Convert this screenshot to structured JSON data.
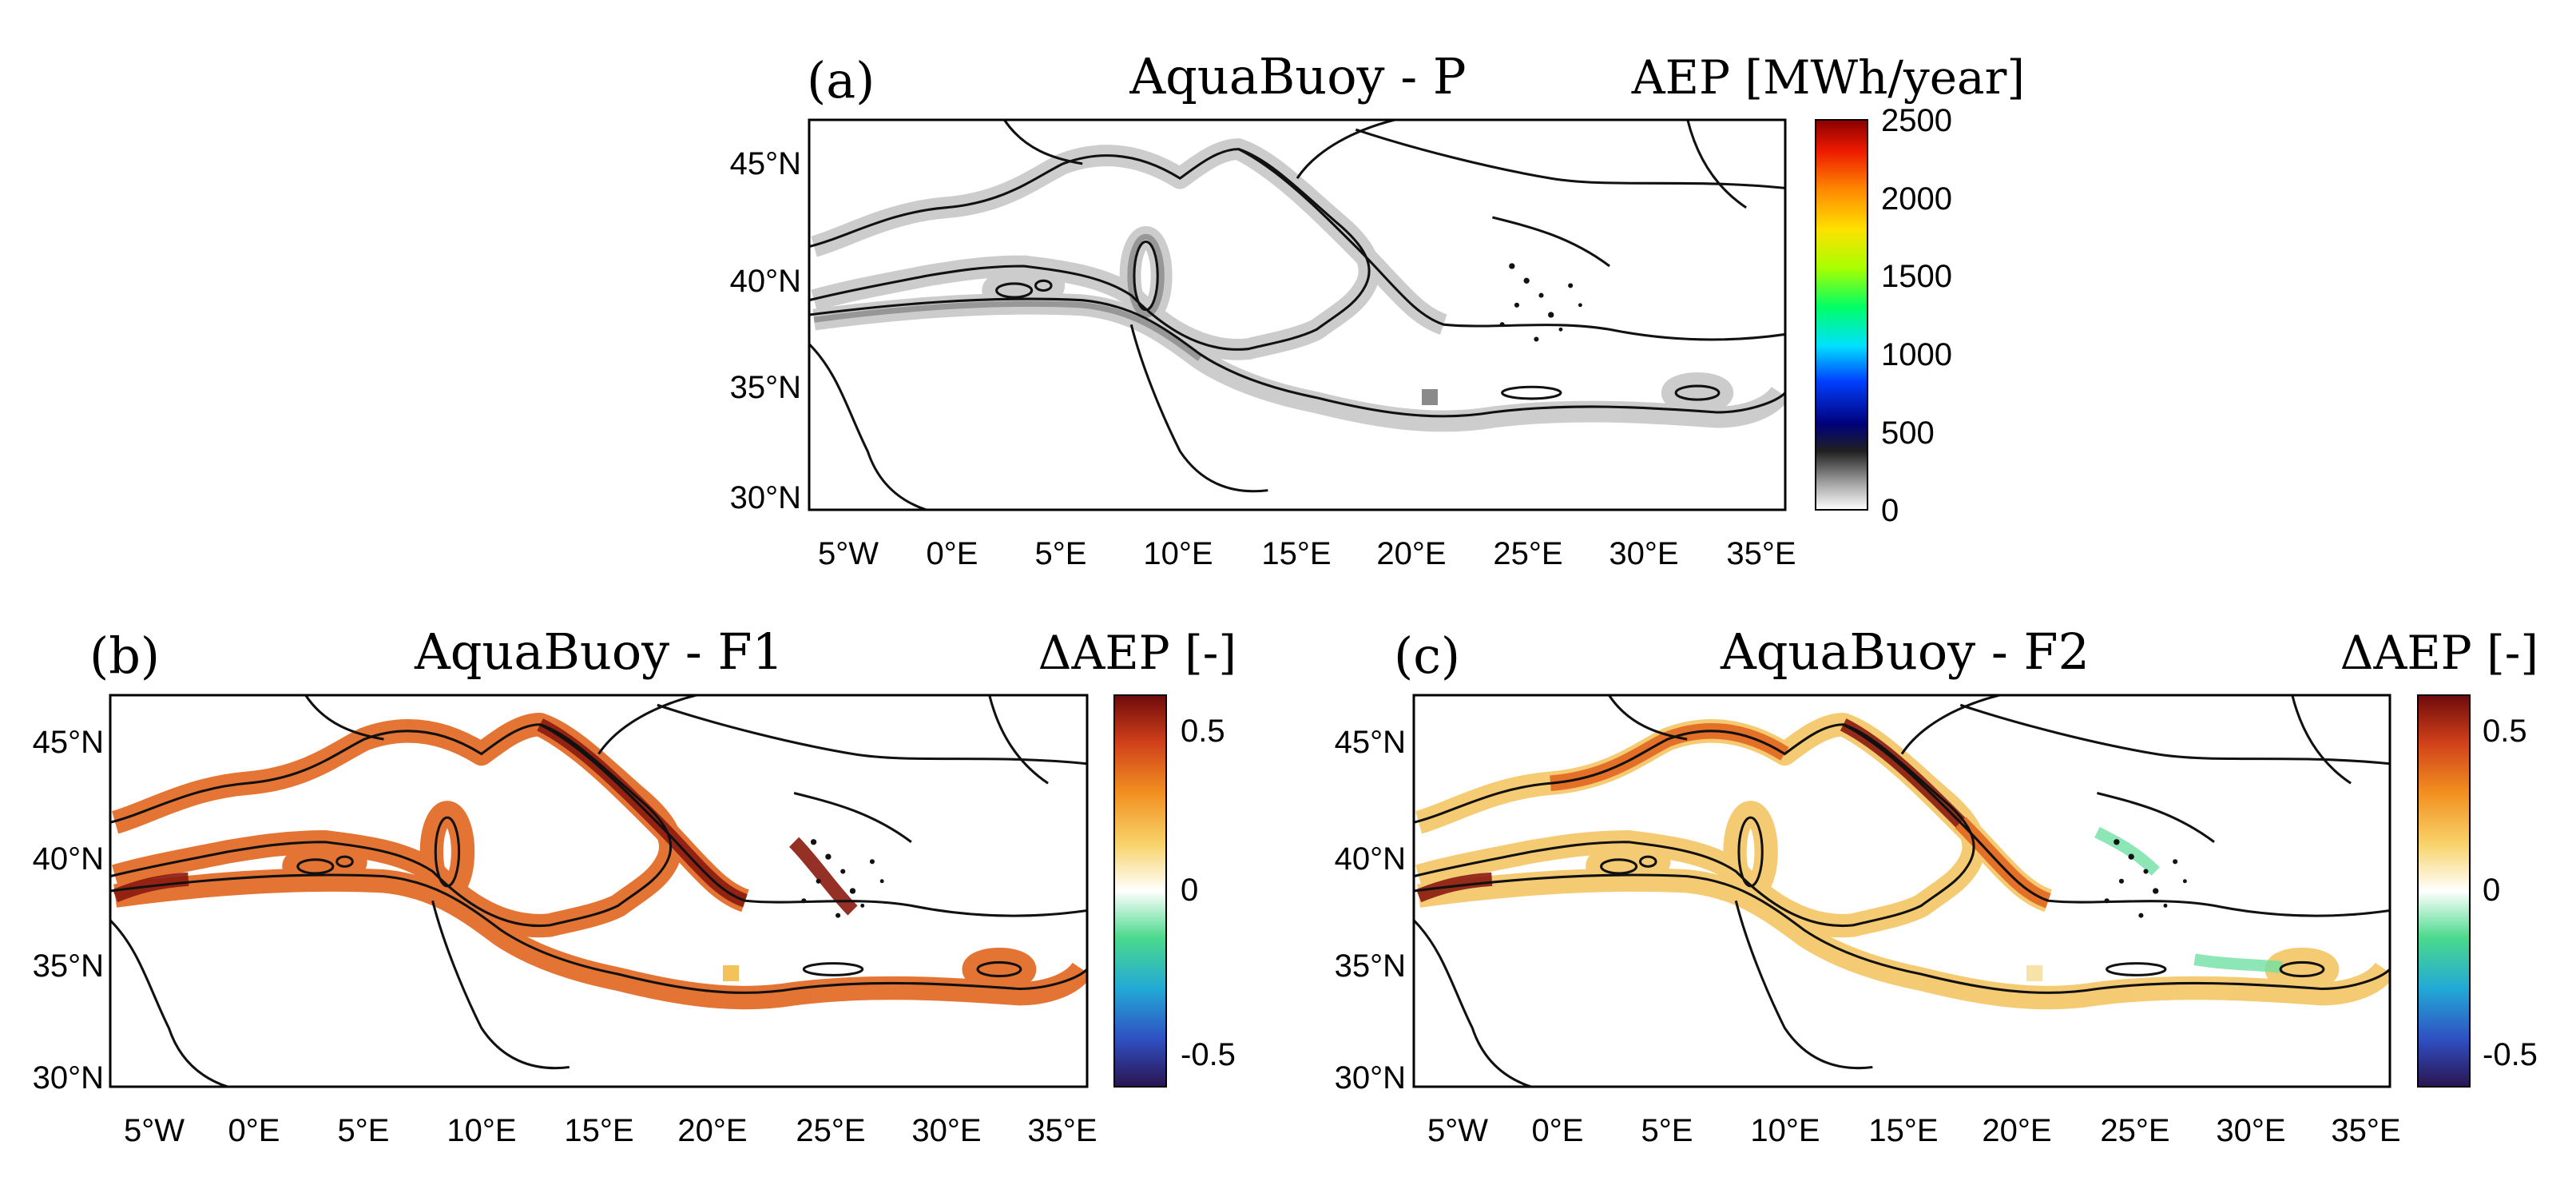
{
  "panels": [
    {
      "id": "a",
      "letter": "(a)",
      "title": "AquaBuoy - P",
      "colorbar_label": "AEP [MWh/year]",
      "colorbar_ticks": [
        "2500",
        "2000",
        "1500",
        "1000",
        "500",
        "0"
      ]
    },
    {
      "id": "b",
      "letter": "(b)",
      "title": "AquaBuoy - F1",
      "colorbar_label": "ΔAEP [-]",
      "colorbar_ticks": [
        "0.5",
        "0",
        "-0.5"
      ]
    },
    {
      "id": "c",
      "letter": "(c)",
      "title": "AquaBuoy - F2",
      "colorbar_label": "ΔAEP [-]",
      "colorbar_ticks": [
        "0.5",
        "0",
        "-0.5"
      ]
    }
  ],
  "axes": {
    "lat_labels": [
      "45°N",
      "40°N",
      "35°N",
      "30°N"
    ],
    "lon_labels": [
      "5°W",
      "0°E",
      "5°E",
      "10°E",
      "15°E",
      "20°E",
      "25°E",
      "30°E",
      "35°E"
    ]
  },
  "colors": {
    "frame": "#000000",
    "coast": "#111111",
    "band_a": "#bdbdbd",
    "band_b": "#e2661f",
    "band_c": "#f3c25a"
  }
}
